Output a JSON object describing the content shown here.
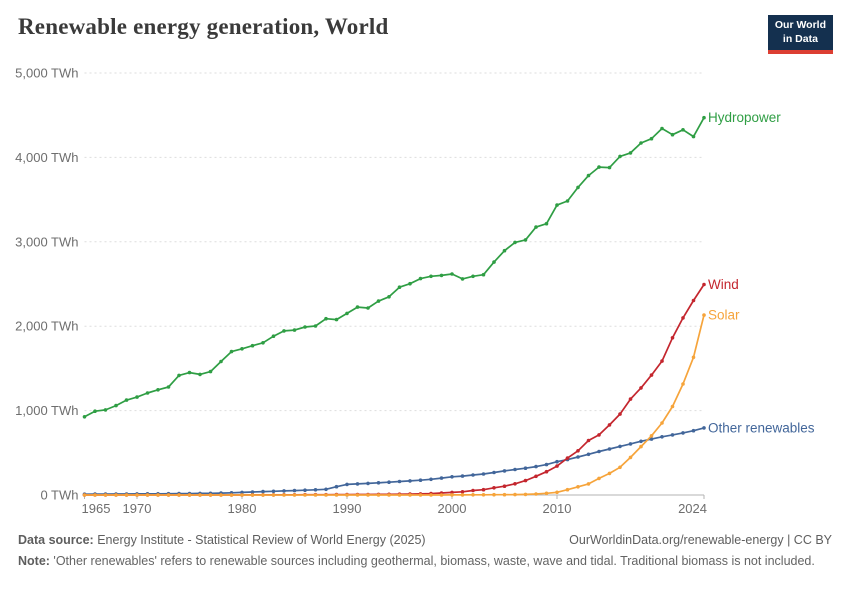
{
  "header": {
    "title": "Renewable energy generation, World"
  },
  "logo": {
    "line1": "Our World",
    "line2": "in Data",
    "bg_color": "#14304F",
    "stripe_color": "#DC3E32"
  },
  "footer": {
    "source_label": "Data source:",
    "source_value": " Energy Institute - Statistical Review of World Energy (2025)",
    "attribution": "OurWorldinData.org/renewable-energy | CC BY",
    "note_label": "Note:",
    "note_text": " 'Other renewables' refers to renewable sources including geothermal, biomass, waste, wave and tidal. Traditional biomass is not included."
  },
  "chart_data": {
    "type": "line",
    "title": "Renewable energy generation, World",
    "unit": "TWh",
    "xlim": [
      1965,
      2024
    ],
    "ylim": [
      0,
      5000
    ],
    "grid": "horizontal-dashed",
    "legend_position": "line-end-labels",
    "axis_color": "#b3b3b3",
    "grid_color": "#dddddd",
    "tick_label_color": "#6e6e6e",
    "y_ticks": [
      {
        "value": 0,
        "label": "0 TWh"
      },
      {
        "value": 1000,
        "label": "1,000 TWh"
      },
      {
        "value": 2000,
        "label": "2,000 TWh"
      },
      {
        "value": 3000,
        "label": "3,000 TWh"
      },
      {
        "value": 4000,
        "label": "4,000 TWh"
      },
      {
        "value": 5000,
        "label": "5,000 TWh"
      }
    ],
    "x_ticks": [
      {
        "value": 1965,
        "label": "1965"
      },
      {
        "value": 1970,
        "label": "1970"
      },
      {
        "value": 1980,
        "label": "1980"
      },
      {
        "value": 1990,
        "label": "1990"
      },
      {
        "value": 2000,
        "label": "2000"
      },
      {
        "value": 2010,
        "label": "2010"
      },
      {
        "value": 2024,
        "label": "2024"
      }
    ],
    "x": [
      1965,
      1966,
      1967,
      1968,
      1969,
      1970,
      1971,
      1972,
      1973,
      1974,
      1975,
      1976,
      1977,
      1978,
      1979,
      1980,
      1981,
      1982,
      1983,
      1984,
      1985,
      1986,
      1987,
      1988,
      1989,
      1990,
      1991,
      1992,
      1993,
      1994,
      1995,
      1996,
      1997,
      1998,
      1999,
      2000,
      2001,
      2002,
      2003,
      2004,
      2005,
      2006,
      2007,
      2008,
      2009,
      2010,
      2011,
      2012,
      2013,
      2014,
      2015,
      2016,
      2017,
      2018,
      2019,
      2020,
      2021,
      2022,
      2023,
      2024
    ],
    "series": [
      {
        "id": "hydropower",
        "name": "Hydropower",
        "color": "#2F9E44",
        "values": [
          926,
          993,
          1008,
          1059,
          1124,
          1160,
          1209,
          1246,
          1280,
          1417,
          1450,
          1429,
          1462,
          1582,
          1699,
          1732,
          1769,
          1803,
          1882,
          1944,
          1954,
          1991,
          2002,
          2089,
          2078,
          2152,
          2226,
          2216,
          2297,
          2348,
          2462,
          2503,
          2564,
          2591,
          2602,
          2619,
          2561,
          2591,
          2610,
          2759,
          2894,
          2993,
          3022,
          3174,
          3215,
          3435,
          3484,
          3645,
          3784,
          3885,
          3879,
          4012,
          4053,
          4171,
          4222,
          4342,
          4269,
          4327,
          4247,
          4470
        ]
      },
      {
        "id": "other-renewables",
        "name": "Other renewables",
        "color": "#42669A",
        "values": [
          10,
          11,
          11,
          12,
          12,
          13,
          14,
          14,
          15,
          16,
          17,
          19,
          20,
          22,
          26,
          31,
          36,
          40,
          44,
          48,
          52,
          57,
          62,
          68,
          98,
          125,
          131,
          138,
          144,
          152,
          160,
          167,
          175,
          186,
          200,
          216,
          224,
          237,
          249,
          266,
          285,
          302,
          318,
          337,
          360,
          395,
          420,
          450,
          482,
          515,
          545,
          576,
          606,
          636,
          662,
          690,
          712,
          736,
          762,
          795
        ]
      },
      {
        "id": "wind",
        "name": "Wind",
        "color": "#C4262E",
        "values": [
          0,
          0,
          0,
          0,
          0,
          0,
          0,
          0,
          0,
          0,
          0,
          0,
          0,
          0,
          0,
          0,
          1,
          1,
          1,
          2,
          2,
          3,
          3,
          4,
          5,
          5,
          6,
          6,
          7,
          8,
          9,
          11,
          13,
          17,
          24,
          31,
          38,
          53,
          63,
          85,
          104,
          133,
          171,
          221,
          276,
          342,
          437,
          524,
          646,
          712,
          831,
          959,
          1136,
          1269,
          1421,
          1586,
          1862,
          2098,
          2304,
          2494
        ]
      },
      {
        "id": "solar",
        "name": "Solar",
        "color": "#F6A43B",
        "values": [
          0,
          0,
          0,
          0,
          0,
          0,
          0,
          0,
          0,
          0,
          0,
          0,
          0,
          0,
          0,
          0,
          0,
          0,
          0,
          0,
          0,
          0,
          0,
          0,
          0,
          0,
          0,
          0,
          0,
          0,
          0,
          0,
          0,
          0,
          0,
          1,
          1,
          2,
          2,
          3,
          4,
          5,
          7,
          12,
          20,
          32,
          63,
          97,
          132,
          197,
          256,
          328,
          445,
          574,
          702,
          853,
          1049,
          1315,
          1631,
          2131
        ]
      }
    ]
  }
}
